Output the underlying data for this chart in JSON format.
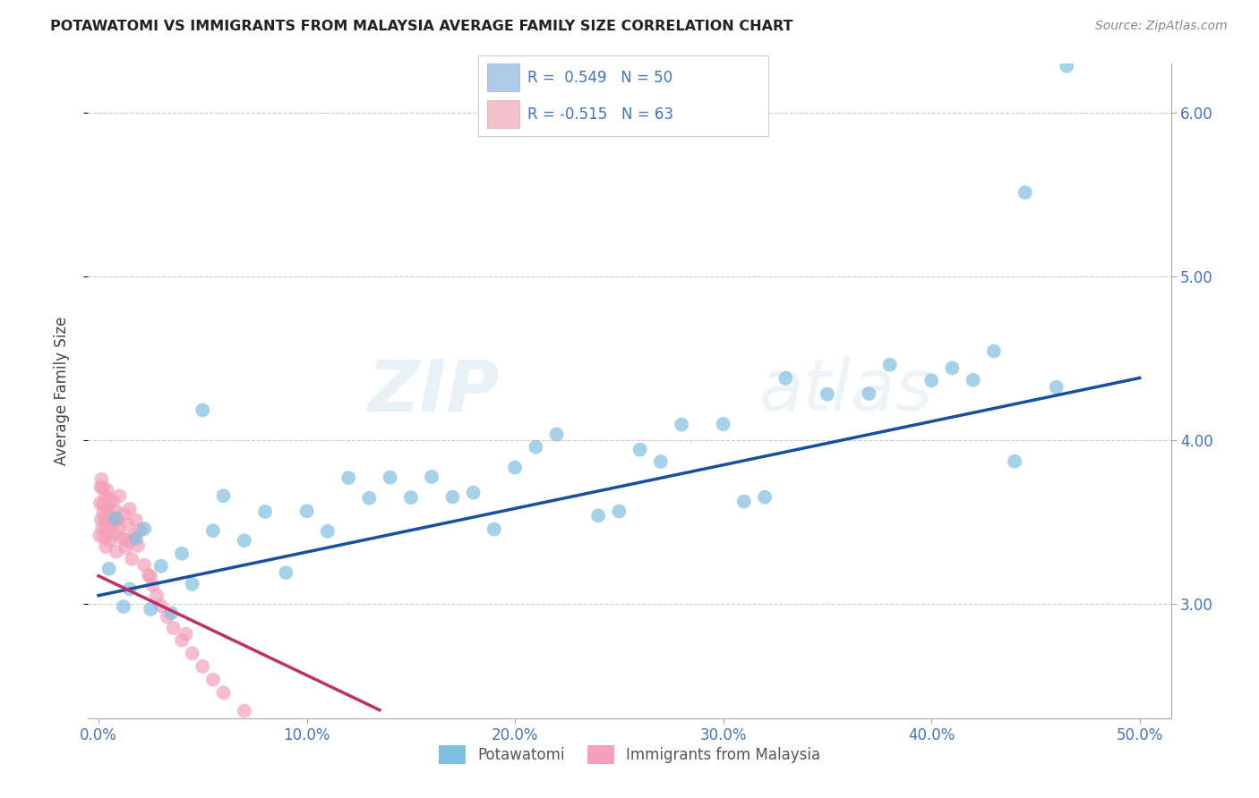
{
  "title": "POTAWATOMI VS IMMIGRANTS FROM MALAYSIA AVERAGE FAMILY SIZE CORRELATION CHART",
  "source": "Source: ZipAtlas.com",
  "ylabel": "Average Family Size",
  "xlabel_vals": [
    0.0,
    10.0,
    20.0,
    30.0,
    40.0,
    50.0
  ],
  "ylabel_ticks": [
    3.0,
    4.0,
    5.0,
    6.0
  ],
  "xlim": [
    -0.5,
    51.5
  ],
  "ylim": [
    2.3,
    6.3
  ],
  "watermark": "ZIPatlas",
  "blue_color": "#7fbfdf",
  "pink_color": "#f4a0b8",
  "blue_line_color": "#1a4fa0",
  "pink_line_color": "#c03060",
  "title_color": "#222222",
  "axis_label_color": "#444444",
  "tick_color": "#4472c4",
  "grid_color": "#cccccc",
  "background_color": "#ffffff",
  "legend_box_colors": [
    "#aecce8",
    "#f4c0cc"
  ],
  "legend_text_color": "#4472c4",
  "legend1_r": "0.549",
  "legend1_n": "50",
  "legend2_r": "-0.515",
  "legend2_n": "63",
  "blue_line_x0": 0.0,
  "blue_line_x1": 50.0,
  "blue_line_y0": 3.05,
  "blue_line_y1": 4.38,
  "pink_line_x0": 0.0,
  "pink_line_x1": 13.5,
  "pink_line_y0": 3.17,
  "pink_line_y1": 2.35
}
